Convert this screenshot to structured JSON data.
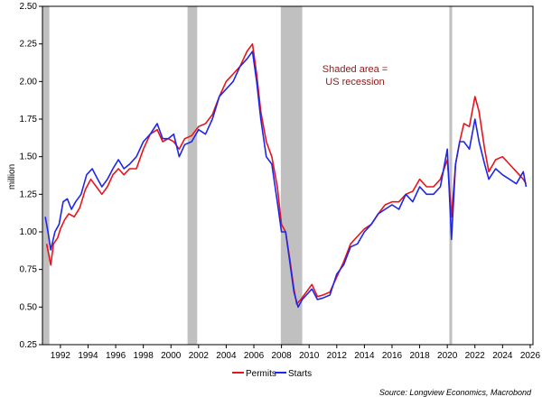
{
  "chart_data": {
    "type": "line",
    "title": "",
    "xlabel": "",
    "ylabel": "million",
    "xlim": [
      1990.7,
      2026.2
    ],
    "ylim": [
      0.25,
      2.5
    ],
    "x_ticks": [
      1992,
      1994,
      1996,
      1998,
      2000,
      2002,
      2004,
      2006,
      2008,
      2010,
      2012,
      2014,
      2016,
      2018,
      2020,
      2022,
      2024,
      2026
    ],
    "y_ticks": [
      0.25,
      0.5,
      0.75,
      1.0,
      1.25,
      1.5,
      1.75,
      2.0,
      2.25,
      2.5
    ],
    "y_tick_labels": [
      "0.25",
      "0.50",
      "0.75",
      "1.00",
      "1.25",
      "1.50",
      "1.75",
      "2.00",
      "2.25",
      "2.50"
    ],
    "recessions": [
      [
        1990.6,
        1991.2
      ],
      [
        2001.2,
        2001.9
      ],
      [
        2007.95,
        2009.5
      ],
      [
        2020.15,
        2020.35
      ]
    ],
    "annotation": [
      "Shaded area =",
      "US recession"
    ],
    "legend": [
      "Permits",
      "Starts"
    ],
    "source": "Source: Longview Economics, Macrobond",
    "grid": false,
    "series": [
      {
        "name": "Permits",
        "color": "#e8141b",
        "points": [
          [
            1991.0,
            0.92
          ],
          [
            1991.2,
            0.83
          ],
          [
            1991.3,
            0.78
          ],
          [
            1991.5,
            0.92
          ],
          [
            1991.8,
            0.96
          ],
          [
            1992.0,
            1.02
          ],
          [
            1992.3,
            1.08
          ],
          [
            1992.6,
            1.12
          ],
          [
            1993.0,
            1.1
          ],
          [
            1993.4,
            1.16
          ],
          [
            1993.8,
            1.28
          ],
          [
            1994.2,
            1.35
          ],
          [
            1994.6,
            1.3
          ],
          [
            1995.0,
            1.25
          ],
          [
            1995.4,
            1.3
          ],
          [
            1995.8,
            1.38
          ],
          [
            1996.2,
            1.42
          ],
          [
            1996.6,
            1.38
          ],
          [
            1997.0,
            1.42
          ],
          [
            1997.5,
            1.42
          ],
          [
            1998.0,
            1.55
          ],
          [
            1998.5,
            1.65
          ],
          [
            1999.0,
            1.68
          ],
          [
            1999.4,
            1.6
          ],
          [
            1999.8,
            1.62
          ],
          [
            2000.2,
            1.6
          ],
          [
            2000.6,
            1.55
          ],
          [
            2001.0,
            1.62
          ],
          [
            2001.5,
            1.64
          ],
          [
            2002.0,
            1.7
          ],
          [
            2002.5,
            1.72
          ],
          [
            2003.0,
            1.78
          ],
          [
            2003.5,
            1.9
          ],
          [
            2004.0,
            2.0
          ],
          [
            2004.5,
            2.05
          ],
          [
            2005.0,
            2.1
          ],
          [
            2005.5,
            2.2
          ],
          [
            2005.9,
            2.25
          ],
          [
            2006.2,
            2.05
          ],
          [
            2006.5,
            1.8
          ],
          [
            2006.9,
            1.6
          ],
          [
            2007.3,
            1.5
          ],
          [
            2007.7,
            1.3
          ],
          [
            2008.0,
            1.05
          ],
          [
            2008.3,
            1.0
          ],
          [
            2008.6,
            0.82
          ],
          [
            2008.9,
            0.62
          ],
          [
            2009.1,
            0.52
          ],
          [
            2009.4,
            0.55
          ],
          [
            2009.8,
            0.6
          ],
          [
            2010.2,
            0.65
          ],
          [
            2010.6,
            0.57
          ],
          [
            2011.0,
            0.58
          ],
          [
            2011.5,
            0.6
          ],
          [
            2012.0,
            0.7
          ],
          [
            2012.5,
            0.8
          ],
          [
            2013.0,
            0.92
          ],
          [
            2013.5,
            0.97
          ],
          [
            2014.0,
            1.02
          ],
          [
            2014.5,
            1.05
          ],
          [
            2015.0,
            1.12
          ],
          [
            2015.5,
            1.18
          ],
          [
            2016.0,
            1.2
          ],
          [
            2016.5,
            1.2
          ],
          [
            2017.0,
            1.25
          ],
          [
            2017.5,
            1.27
          ],
          [
            2018.0,
            1.35
          ],
          [
            2018.5,
            1.3
          ],
          [
            2019.0,
            1.3
          ],
          [
            2019.5,
            1.35
          ],
          [
            2020.0,
            1.48
          ],
          [
            2020.3,
            1.1
          ],
          [
            2020.6,
            1.45
          ],
          [
            2020.9,
            1.6
          ],
          [
            2021.2,
            1.72
          ],
          [
            2021.6,
            1.7
          ],
          [
            2022.0,
            1.9
          ],
          [
            2022.3,
            1.8
          ],
          [
            2022.7,
            1.55
          ],
          [
            2023.0,
            1.4
          ],
          [
            2023.5,
            1.48
          ],
          [
            2024.0,
            1.5
          ],
          [
            2024.5,
            1.45
          ],
          [
            2025.0,
            1.4
          ],
          [
            2025.5,
            1.35
          ],
          [
            2025.7,
            1.32
          ]
        ]
      },
      {
        "name": "Starts",
        "color": "#1f26e8",
        "points": [
          [
            1990.9,
            1.1
          ],
          [
            1991.1,
            1.0
          ],
          [
            1991.3,
            0.88
          ],
          [
            1991.6,
            1.0
          ],
          [
            1991.9,
            1.05
          ],
          [
            1992.2,
            1.2
          ],
          [
            1992.5,
            1.22
          ],
          [
            1992.8,
            1.15
          ],
          [
            1993.1,
            1.2
          ],
          [
            1993.5,
            1.25
          ],
          [
            1993.9,
            1.38
          ],
          [
            1994.3,
            1.42
          ],
          [
            1994.7,
            1.35
          ],
          [
            1995.0,
            1.3
          ],
          [
            1995.4,
            1.35
          ],
          [
            1995.8,
            1.42
          ],
          [
            1996.2,
            1.48
          ],
          [
            1996.6,
            1.42
          ],
          [
            1997.0,
            1.45
          ],
          [
            1997.5,
            1.5
          ],
          [
            1998.0,
            1.6
          ],
          [
            1998.5,
            1.65
          ],
          [
            1999.0,
            1.72
          ],
          [
            1999.4,
            1.62
          ],
          [
            1999.8,
            1.62
          ],
          [
            2000.2,
            1.65
          ],
          [
            2000.6,
            1.5
          ],
          [
            2001.0,
            1.58
          ],
          [
            2001.5,
            1.6
          ],
          [
            2002.0,
            1.68
          ],
          [
            2002.5,
            1.65
          ],
          [
            2003.0,
            1.75
          ],
          [
            2003.5,
            1.9
          ],
          [
            2004.0,
            1.95
          ],
          [
            2004.5,
            2.0
          ],
          [
            2005.0,
            2.1
          ],
          [
            2005.5,
            2.15
          ],
          [
            2005.9,
            2.2
          ],
          [
            2006.2,
            2.0
          ],
          [
            2006.5,
            1.75
          ],
          [
            2006.9,
            1.5
          ],
          [
            2007.3,
            1.45
          ],
          [
            2007.7,
            1.2
          ],
          [
            2008.0,
            1.0
          ],
          [
            2008.3,
            1.0
          ],
          [
            2008.6,
            0.8
          ],
          [
            2008.9,
            0.6
          ],
          [
            2009.2,
            0.5
          ],
          [
            2009.5,
            0.55
          ],
          [
            2009.8,
            0.58
          ],
          [
            2010.2,
            0.62
          ],
          [
            2010.6,
            0.55
          ],
          [
            2011.0,
            0.56
          ],
          [
            2011.5,
            0.58
          ],
          [
            2012.0,
            0.72
          ],
          [
            2012.5,
            0.78
          ],
          [
            2013.0,
            0.9
          ],
          [
            2013.5,
            0.92
          ],
          [
            2014.0,
            1.0
          ],
          [
            2014.5,
            1.05
          ],
          [
            2015.0,
            1.12
          ],
          [
            2015.5,
            1.15
          ],
          [
            2016.0,
            1.18
          ],
          [
            2016.5,
            1.15
          ],
          [
            2017.0,
            1.25
          ],
          [
            2017.5,
            1.2
          ],
          [
            2018.0,
            1.3
          ],
          [
            2018.5,
            1.25
          ],
          [
            2019.0,
            1.25
          ],
          [
            2019.5,
            1.3
          ],
          [
            2020.0,
            1.55
          ],
          [
            2020.3,
            0.95
          ],
          [
            2020.6,
            1.45
          ],
          [
            2020.9,
            1.6
          ],
          [
            2021.2,
            1.6
          ],
          [
            2021.6,
            1.55
          ],
          [
            2022.0,
            1.75
          ],
          [
            2022.3,
            1.6
          ],
          [
            2022.7,
            1.45
          ],
          [
            2023.0,
            1.35
          ],
          [
            2023.5,
            1.42
          ],
          [
            2024.0,
            1.38
          ],
          [
            2024.5,
            1.35
          ],
          [
            2025.0,
            1.32
          ],
          [
            2025.5,
            1.4
          ],
          [
            2025.7,
            1.3
          ]
        ]
      }
    ]
  }
}
